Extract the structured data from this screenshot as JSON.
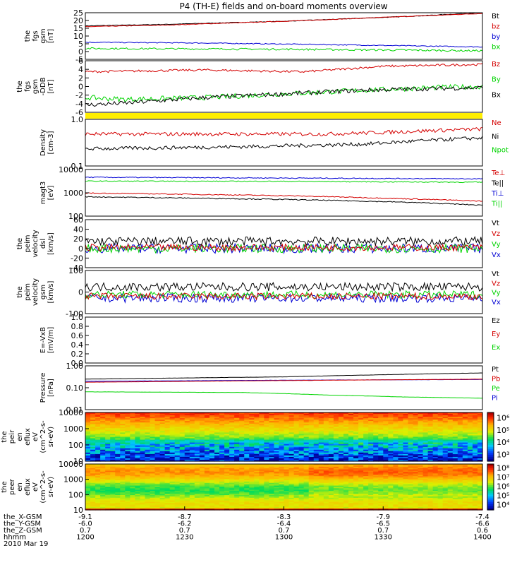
{
  "title": "P4 (TH-E) fields and on-board moments overview",
  "colors": {
    "black": "#000000",
    "red": "#d40000",
    "green": "#00d400",
    "blue": "#0000d4"
  },
  "chart_data": [
    {
      "type": "line",
      "name": "fgs-gsm",
      "ylabel": [
        "the",
        "fgs",
        "gsm",
        "[nT]"
      ],
      "yticks": [
        "25",
        "20",
        "15",
        "10",
        "5",
        "0",
        "-5"
      ],
      "ylim": [
        -5,
        25
      ],
      "legend": [
        "Bt",
        "bz",
        "by",
        "bx"
      ],
      "series": [
        {
          "name": "Bt",
          "color": "black",
          "points": [
            [
              0,
              16.5
            ],
            [
              0.2,
              17.5
            ],
            [
              0.5,
              19.5
            ],
            [
              0.8,
              22.5
            ],
            [
              1,
              25
            ]
          ],
          "noise": 0.2
        },
        {
          "name": "bz",
          "color": "red",
          "points": [
            [
              0,
              16
            ],
            [
              0.2,
              17
            ],
            [
              0.5,
              19.5
            ],
            [
              0.8,
              22.5
            ],
            [
              1,
              24.5
            ]
          ],
          "noise": 0.2
        },
        {
          "name": "by",
          "color": "blue",
          "points": [
            [
              0,
              6
            ],
            [
              0.3,
              5.5
            ],
            [
              0.6,
              4.5
            ],
            [
              1,
              3
            ]
          ],
          "noise": 0.3
        },
        {
          "name": "bx",
          "color": "green",
          "points": [
            [
              0,
              2
            ],
            [
              0.5,
              1.5
            ],
            [
              1,
              0.5
            ]
          ],
          "noise": 0.6
        }
      ]
    },
    {
      "type": "line",
      "name": "fgs-gsm-ddb",
      "ylabel": [
        "the",
        "fgs",
        "gsm",
        "-DDB",
        "[nT]"
      ],
      "yticks": [
        "6",
        "4",
        "2",
        "0",
        "-2",
        "-4",
        "-6"
      ],
      "ylim": [
        -7,
        7
      ],
      "legend": [
        "Bz",
        "By",
        "Bx"
      ],
      "series": [
        {
          "name": "Bz",
          "color": "red",
          "points": [
            [
              0,
              4
            ],
            [
              0.3,
              4.5
            ],
            [
              0.55,
              4
            ],
            [
              0.75,
              5.5
            ],
            [
              1,
              6
            ]
          ],
          "noise": 0.3
        },
        {
          "name": "By",
          "color": "green",
          "points": [
            [
              0,
              -3
            ],
            [
              0.1,
              -3.5
            ],
            [
              0.3,
              -3
            ],
            [
              0.5,
              -2
            ],
            [
              0.7,
              -1
            ],
            [
              0.9,
              -0.2
            ],
            [
              1,
              0
            ]
          ],
          "noise": 0.7
        },
        {
          "name": "Bx",
          "color": "black",
          "points": [
            [
              0,
              -5
            ],
            [
              0.1,
              -4.5
            ],
            [
              0.3,
              -3
            ],
            [
              0.5,
              -2
            ],
            [
              0.7,
              -1
            ],
            [
              0.9,
              -0.5
            ],
            [
              1,
              -0.3
            ]
          ],
          "noise": 0.6
        }
      ]
    },
    {
      "type": "line",
      "name": "density",
      "scale": "log",
      "ylabel": [
        "Density",
        "[cm-3]"
      ],
      "yticks": [
        "1.0",
        "0.1"
      ],
      "ylim": [
        0.1,
        1.2
      ],
      "legend": [
        "Ne",
        "Ni",
        "Npot"
      ],
      "series": [
        {
          "name": "Ne",
          "color": "red",
          "points": [
            [
              0,
              0.55
            ],
            [
              0.3,
              0.55
            ],
            [
              0.6,
              0.55
            ],
            [
              0.75,
              0.6
            ],
            [
              0.85,
              0.65
            ],
            [
              1,
              0.72
            ]
          ],
          "noise": 0.1
        },
        {
          "name": "Ni",
          "color": "black",
          "points": [
            [
              0,
              0.25
            ],
            [
              0.4,
              0.28
            ],
            [
              0.7,
              0.32
            ],
            [
              1,
              0.45
            ]
          ],
          "noise": 0.1
        }
      ]
    },
    {
      "type": "line",
      "name": "temperature",
      "scale": "log",
      "ylabel": [
        "magt3",
        "[eV]"
      ],
      "yticks": [
        "10000",
        "1000",
        "100"
      ],
      "ylim": [
        100,
        15000
      ],
      "legend": [
        "Te⊥",
        "Te||",
        "Ti⊥",
        "Ti||"
      ],
      "series": [
        {
          "name": "Ti⊥",
          "color": "blue",
          "points": [
            [
              0,
              6500
            ],
            [
              0.5,
              6000
            ],
            [
              1,
              5500
            ]
          ],
          "noise": 0.05
        },
        {
          "name": "Ti||",
          "color": "green",
          "points": [
            [
              0,
              4300
            ],
            [
              0.5,
              4200
            ],
            [
              1,
              3800
            ]
          ],
          "noise": 0.05
        },
        {
          "name": "Te⊥",
          "color": "red",
          "points": [
            [
              0,
              1200
            ],
            [
              0.5,
              900
            ],
            [
              0.8,
              650
            ],
            [
              1,
              500
            ]
          ],
          "noise": 0.05
        },
        {
          "name": "Te||",
          "color": "black",
          "points": [
            [
              0,
              800
            ],
            [
              0.5,
              600
            ],
            [
              0.8,
              450
            ],
            [
              1,
              320
            ]
          ],
          "noise": 0.05
        }
      ]
    },
    {
      "type": "line",
      "name": "peim-velocity-dsl",
      "ylabel": [
        "the",
        "peim",
        "velocity",
        "dsl",
        "[km/s]"
      ],
      "yticks": [
        "60",
        "40",
        "20",
        "0",
        "-20",
        "-40"
      ],
      "ylim": [
        -40,
        60
      ],
      "legend": [
        "Vt",
        "Vz",
        "Vy",
        "Vx"
      ],
      "series": [
        {
          "name": "Vx",
          "color": "blue",
          "points": [
            [
              0,
              0
            ],
            [
              1,
              0
            ]
          ],
          "noise": 10
        },
        {
          "name": "Vy",
          "color": "green",
          "points": [
            [
              0,
              0
            ],
            [
              1,
              0
            ]
          ],
          "noise": 9
        },
        {
          "name": "Vz",
          "color": "red",
          "points": [
            [
              0,
              2
            ],
            [
              1,
              2
            ]
          ],
          "noise": 7
        },
        {
          "name": "Vt",
          "color": "black",
          "points": [
            [
              0,
              15
            ],
            [
              1,
              15
            ]
          ],
          "noise": 9
        }
      ]
    },
    {
      "type": "line",
      "name": "peim-velocity-gsm",
      "ylabel": [
        "the",
        "peim",
        "velocity",
        "gsm",
        "[km/s]"
      ],
      "yticks": [
        "100",
        "0",
        "-100"
      ],
      "ylim": [
        -100,
        150
      ],
      "legend": [
        "Vt",
        "Vz",
        "Vy",
        "Vx"
      ],
      "series": [
        {
          "name": "Vx",
          "color": "blue",
          "points": [
            [
              0,
              -10
            ],
            [
              1,
              -10
            ]
          ],
          "noise": 25
        },
        {
          "name": "Vy",
          "color": "green",
          "points": [
            [
              0,
              10
            ],
            [
              1,
              10
            ]
          ],
          "noise": 22
        },
        {
          "name": "Vt",
          "color": "black",
          "points": [
            [
              0,
              55
            ],
            [
              1,
              55
            ]
          ],
          "noise": 25
        },
        {
          "name": "Vz",
          "color": "red",
          "points": [
            [
              0,
              0
            ],
            [
              1,
              0
            ]
          ],
          "noise": 20
        }
      ]
    },
    {
      "type": "line",
      "name": "efield",
      "ylabel": [
        "E=-VxB",
        "[mV/m]"
      ],
      "yticks": [
        "1.0",
        "0.8",
        "0.6",
        "0.4",
        "0.2",
        "0.0"
      ],
      "ylim": [
        0,
        1
      ],
      "legend": [
        "Ez",
        "Ey",
        "Ex"
      ],
      "series": []
    },
    {
      "type": "line",
      "name": "pressure",
      "scale": "log",
      "ylabel": [
        "Pressure",
        "[nPa]"
      ],
      "yticks": [
        "1.00",
        "0.10",
        "0.01"
      ],
      "ylim": [
        0.01,
        1.2
      ],
      "legend": [
        "Pt",
        "Pb",
        "Pe",
        "Pi"
      ],
      "series": [
        {
          "name": "Pt",
          "color": "black",
          "points": [
            [
              0,
              0.28
            ],
            [
              0.5,
              0.36
            ],
            [
              1,
              0.55
            ]
          ],
          "noise": 0.01
        },
        {
          "name": "Pi",
          "color": "blue",
          "points": [
            [
              0,
              0.22
            ],
            [
              0.5,
              0.25
            ],
            [
              1,
              0.27
            ]
          ],
          "noise": 0.01
        },
        {
          "name": "Pb",
          "color": "red",
          "points": [
            [
              0,
              0.2
            ],
            [
              0.5,
              0.24
            ],
            [
              1,
              0.28
            ]
          ],
          "noise": 0.01
        },
        {
          "name": "Pe",
          "color": "green",
          "points": [
            [
              0,
              0.07
            ],
            [
              0.4,
              0.065
            ],
            [
              0.6,
              0.05
            ],
            [
              0.8,
              0.04
            ],
            [
              1,
              0.035
            ]
          ],
          "noise": 0.01
        }
      ]
    },
    {
      "type": "heatmap",
      "name": "peir-en-eflux",
      "ylabel": [
        "the",
        "peir",
        "en",
        "eflux",
        "eV",
        "(cm^2-s-",
        "sr-eV)"
      ],
      "yticks": [
        "10000",
        "1000",
        "100",
        "10"
      ],
      "colorbar_ticks": [
        "10⁶",
        "10⁵",
        "10⁴",
        "10³"
      ]
    },
    {
      "type": "heatmap",
      "name": "peer-en-eflux",
      "ylabel": [
        "the",
        "peer",
        "en",
        "eflux",
        "eV",
        "(cm^2-s-",
        "sr-eV)"
      ],
      "yticks": [
        "10000",
        "1000",
        "100",
        "10"
      ],
      "colorbar_ticks": [
        "10⁸",
        "10⁷",
        "10⁶",
        "10⁵",
        "10⁴"
      ]
    }
  ],
  "xaxis": {
    "labels": [
      "the_X-GSM",
      "the_Y-GSM",
      "the_Z-GSM",
      "hhmm",
      "2010 Mar 19"
    ],
    "ticks": [
      {
        "x": -9.1,
        "y": -6.0,
        "z": 0.7,
        "hhmm": "1200"
      },
      {
        "x": -8.7,
        "y": -6.2,
        "z": 0.7,
        "hhmm": "1230"
      },
      {
        "x": -8.3,
        "y": -6.4,
        "z": 0.7,
        "hhmm": "1300"
      },
      {
        "x": -7.9,
        "y": -6.5,
        "z": 0.7,
        "hhmm": "1330"
      },
      {
        "x": -7.4,
        "y": -6.6,
        "z": 0.6,
        "hhmm": "1400"
      }
    ]
  }
}
